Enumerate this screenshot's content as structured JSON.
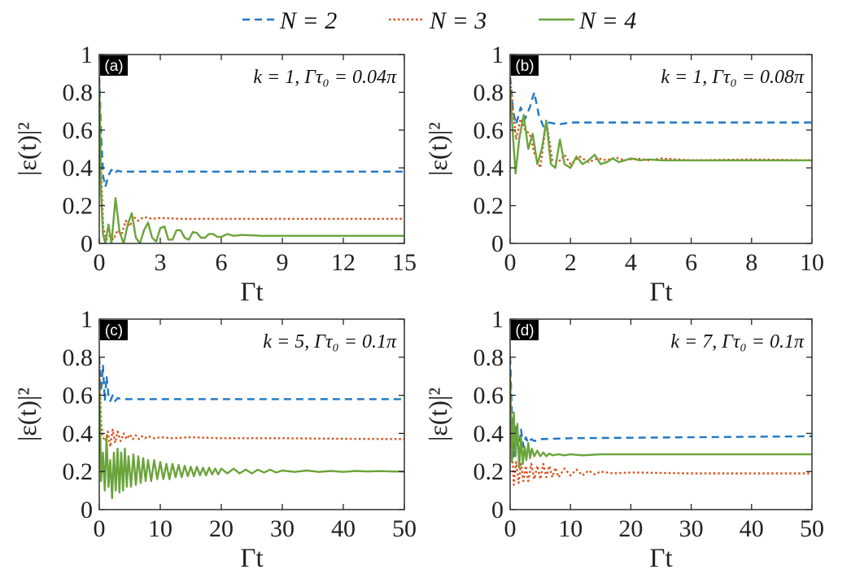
{
  "legend": [
    {
      "label": "N = 2",
      "color": "#1f77c4",
      "dash": "dashed"
    },
    {
      "label": "N = 3",
      "color": "#d9531e",
      "dash": "dotted"
    },
    {
      "label": "N = 4",
      "color": "#6aa43a",
      "dash": "solid"
    }
  ],
  "chart_data": [
    {
      "type": "line",
      "panel_label": "(a)",
      "annotation": "k = 1, Γτ₀ = 0.04π",
      "xlabel": "Γt",
      "ylabel": "|ε(t)|²",
      "xlim": [
        0,
        15
      ],
      "ylim": [
        0,
        1
      ],
      "xticks": [
        0,
        3,
        6,
        9,
        12,
        15
      ],
      "yticks": [
        0,
        0.2,
        0.4,
        0.6,
        0.8,
        1
      ],
      "xtick_labels": [
        "0",
        "3",
        "6",
        "9",
        "12",
        "15"
      ],
      "ytick_labels": [
        "0",
        "0.2",
        "0.4",
        "0.6",
        "0.8",
        "1"
      ],
      "series": [
        {
          "name": "N = 2",
          "x": [
            0,
            0.1,
            0.2,
            0.3,
            0.45,
            0.6,
            0.75,
            0.9,
            1.1,
            1.4,
            2,
            5,
            10,
            15
          ],
          "y": [
            0.88,
            0.55,
            0.35,
            0.3,
            0.36,
            0.39,
            0.37,
            0.385,
            0.38,
            0.38,
            0.38,
            0.38,
            0.38,
            0.38
          ]
        },
        {
          "name": "N = 3",
          "x": [
            0,
            0.1,
            0.2,
            0.35,
            0.5,
            0.7,
            0.9,
            1.1,
            1.3,
            1.5,
            1.7,
            1.9,
            2.2,
            2.6,
            3,
            4,
            8,
            15
          ],
          "y": [
            0.85,
            0.35,
            0.08,
            0.02,
            0.04,
            0.02,
            0.07,
            0.05,
            0.12,
            0.09,
            0.14,
            0.12,
            0.14,
            0.13,
            0.135,
            0.13,
            0.13,
            0.13
          ]
        },
        {
          "name": "N = 4",
          "x": [
            0,
            0.08,
            0.18,
            0.3,
            0.45,
            0.6,
            0.8,
            1.0,
            1.2,
            1.4,
            1.6,
            1.8,
            2.0,
            2.2,
            2.4,
            2.6,
            2.8,
            3.0,
            3.2,
            3.4,
            3.6,
            3.8,
            4.0,
            4.2,
            4.4,
            4.6,
            4.8,
            5.0,
            5.2,
            5.4,
            5.6,
            5.8,
            6.0,
            6.3,
            6.6,
            7.0,
            8,
            10,
            15
          ],
          "y": [
            0.85,
            0.3,
            0.05,
            0.0,
            0.1,
            0.0,
            0.24,
            0.06,
            0.0,
            0.1,
            0.16,
            0.03,
            0.0,
            0.07,
            0.11,
            0.03,
            0.01,
            0.08,
            0.09,
            0.02,
            0.02,
            0.07,
            0.07,
            0.03,
            0.02,
            0.06,
            0.055,
            0.03,
            0.03,
            0.05,
            0.05,
            0.035,
            0.035,
            0.05,
            0.04,
            0.045,
            0.04,
            0.04,
            0.04
          ]
        }
      ]
    },
    {
      "type": "line",
      "panel_label": "(b)",
      "annotation": "k = 1, Γτ₀ = 0.08π",
      "xlabel": "Γt",
      "ylabel": "|ε(t)|²",
      "xlim": [
        0,
        10
      ],
      "ylim": [
        0,
        1
      ],
      "xticks": [
        0,
        2,
        4,
        6,
        8,
        10
      ],
      "yticks": [
        0,
        0.2,
        0.4,
        0.6,
        0.8,
        1
      ],
      "xtick_labels": [
        "0",
        "2",
        "4",
        "6",
        "8",
        "10"
      ],
      "ytick_labels": [
        "0",
        "0.2",
        "0.4",
        "0.6",
        "0.8",
        "1"
      ],
      "series": [
        {
          "name": "N = 2",
          "x": [
            0,
            0.1,
            0.2,
            0.35,
            0.5,
            0.65,
            0.8,
            0.95,
            1.1,
            1.3,
            1.6,
            2,
            4,
            10
          ],
          "y": [
            0.88,
            0.7,
            0.63,
            0.72,
            0.66,
            0.72,
            0.8,
            0.68,
            0.62,
            0.64,
            0.63,
            0.64,
            0.64,
            0.64
          ]
        },
        {
          "name": "N = 3",
          "x": [
            0,
            0.1,
            0.2,
            0.35,
            0.5,
            0.65,
            0.8,
            1.0,
            1.2,
            1.4,
            1.6,
            1.8,
            2.0,
            2.3,
            2.6,
            2.9,
            3.2,
            3.5,
            3.8,
            4.2,
            4.6,
            5,
            6,
            8,
            10
          ],
          "y": [
            0.88,
            0.7,
            0.55,
            0.66,
            0.6,
            0.58,
            0.48,
            0.4,
            0.65,
            0.44,
            0.43,
            0.47,
            0.42,
            0.46,
            0.43,
            0.45,
            0.44,
            0.455,
            0.44,
            0.45,
            0.44,
            0.45,
            0.44,
            0.445,
            0.44
          ]
        },
        {
          "name": "N = 4",
          "x": [
            0,
            0.08,
            0.18,
            0.3,
            0.45,
            0.6,
            0.75,
            0.9,
            1.05,
            1.2,
            1.35,
            1.5,
            1.65,
            1.8,
            2.0,
            2.2,
            2.4,
            2.6,
            2.8,
            3.0,
            3.2,
            3.4,
            3.6,
            3.8,
            4.0,
            4.3,
            4.6,
            5,
            6,
            8,
            10
          ],
          "y": [
            0.82,
            0.6,
            0.37,
            0.55,
            0.68,
            0.5,
            0.58,
            0.42,
            0.5,
            0.65,
            0.42,
            0.4,
            0.55,
            0.42,
            0.4,
            0.46,
            0.42,
            0.44,
            0.47,
            0.42,
            0.43,
            0.45,
            0.43,
            0.44,
            0.45,
            0.44,
            0.445,
            0.44,
            0.44,
            0.44,
            0.44
          ]
        }
      ]
    },
    {
      "type": "line",
      "panel_label": "(c)",
      "annotation": "k = 5, Γτ₀ = 0.1π",
      "xlabel": "Γt",
      "ylabel": "|ε(t)|²",
      "xlim": [
        0,
        50
      ],
      "ylim": [
        0,
        1
      ],
      "xticks": [
        0,
        10,
        20,
        30,
        40,
        50
      ],
      "yticks": [
        0,
        0.2,
        0.4,
        0.6,
        0.8,
        1
      ],
      "xtick_labels": [
        "0",
        "10",
        "20",
        "30",
        "40",
        "50"
      ],
      "ytick_labels": [
        "0",
        "0.2",
        "0.4",
        "0.6",
        "0.8",
        "1"
      ],
      "series": [
        {
          "name": "N = 2",
          "x": [
            0,
            0.3,
            0.6,
            0.9,
            1.2,
            1.5,
            1.8,
            2.2,
            2.6,
            3,
            4,
            10,
            50
          ],
          "y": [
            0.8,
            0.62,
            0.76,
            0.57,
            0.7,
            0.6,
            0.57,
            0.6,
            0.57,
            0.585,
            0.58,
            0.58,
            0.58
          ]
        },
        {
          "name": "N = 3",
          "x": [
            0,
            0.3,
            0.6,
            1,
            1.4,
            1.8,
            2.2,
            2.6,
            3,
            3.5,
            4,
            4.5,
            5,
            5.5,
            6,
            6.5,
            7,
            7.5,
            8,
            9,
            10,
            12,
            15,
            20,
            30,
            40,
            50
          ],
          "y": [
            0.8,
            0.45,
            0.38,
            0.36,
            0.41,
            0.33,
            0.42,
            0.35,
            0.41,
            0.36,
            0.4,
            0.37,
            0.395,
            0.37,
            0.39,
            0.37,
            0.385,
            0.375,
            0.385,
            0.375,
            0.38,
            0.375,
            0.38,
            0.375,
            0.375,
            0.372,
            0.37
          ]
        },
        {
          "name": "N = 4",
          "x": [
            0,
            0.3,
            0.6,
            0.9,
            1.2,
            1.5,
            1.8,
            2.1,
            2.4,
            2.7,
            3.0,
            3.3,
            3.6,
            3.9,
            4.2,
            4.5,
            4.8,
            5.2,
            5.6,
            6.0,
            6.4,
            6.8,
            7.2,
            7.6,
            8.0,
            8.5,
            9.0,
            9.5,
            10,
            10.5,
            11,
            11.5,
            12,
            12.5,
            13,
            13.5,
            14,
            14.5,
            15,
            15.5,
            16,
            16.5,
            17,
            17.5,
            18,
            18.5,
            19,
            19.5,
            20,
            21,
            22,
            23,
            24,
            25,
            26,
            27,
            28,
            29,
            30,
            32,
            34,
            36,
            38,
            40,
            42,
            44,
            46,
            48,
            50
          ],
          "y": [
            0.7,
            0.15,
            0.3,
            0.1,
            0.38,
            0.12,
            0.26,
            0.06,
            0.3,
            0.1,
            0.32,
            0.09,
            0.3,
            0.1,
            0.32,
            0.12,
            0.28,
            0.12,
            0.29,
            0.13,
            0.28,
            0.14,
            0.27,
            0.15,
            0.26,
            0.15,
            0.26,
            0.16,
            0.25,
            0.16,
            0.24,
            0.16,
            0.24,
            0.17,
            0.235,
            0.17,
            0.23,
            0.175,
            0.225,
            0.175,
            0.225,
            0.18,
            0.22,
            0.18,
            0.22,
            0.185,
            0.215,
            0.185,
            0.215,
            0.19,
            0.215,
            0.19,
            0.21,
            0.19,
            0.21,
            0.195,
            0.21,
            0.195,
            0.205,
            0.198,
            0.205,
            0.198,
            0.203,
            0.198,
            0.203,
            0.2,
            0.202,
            0.2,
            0.2
          ]
        }
      ]
    },
    {
      "type": "line",
      "panel_label": "(d)",
      "annotation": "k = 7, Γτ₀ = 0.1π",
      "xlabel": "Γt",
      "ylabel": "|ε(t)|²",
      "xlim": [
        0,
        50
      ],
      "ylim": [
        0,
        1
      ],
      "xticks": [
        0,
        10,
        20,
        30,
        40,
        50
      ],
      "yticks": [
        0,
        0.2,
        0.4,
        0.6,
        0.8,
        1
      ],
      "xtick_labels": [
        "0",
        "10",
        "20",
        "30",
        "40",
        "50"
      ],
      "ytick_labels": [
        "0",
        "0.2",
        "0.4",
        "0.6",
        "0.8",
        "1"
      ],
      "series": [
        {
          "name": "N = 2",
          "x": [
            0,
            0.3,
            0.6,
            1,
            1.4,
            1.8,
            2.2,
            2.6,
            3,
            3.5,
            4,
            5,
            10,
            30,
            50
          ],
          "y": [
            0.8,
            0.5,
            0.28,
            0.45,
            0.3,
            0.42,
            0.33,
            0.38,
            0.35,
            0.37,
            0.36,
            0.37,
            0.375,
            0.38,
            0.385
          ]
        },
        {
          "name": "N = 3",
          "x": [
            0,
            0.3,
            0.6,
            1,
            1.4,
            1.8,
            2.2,
            2.6,
            3,
            3.5,
            4,
            4.5,
            5,
            5.5,
            6,
            6.5,
            7,
            7.5,
            8,
            9,
            10,
            11,
            12,
            13,
            14,
            15,
            17,
            20,
            30,
            40,
            50
          ],
          "y": [
            0.7,
            0.35,
            0.13,
            0.25,
            0.14,
            0.24,
            0.15,
            0.23,
            0.15,
            0.24,
            0.16,
            0.23,
            0.16,
            0.24,
            0.17,
            0.23,
            0.17,
            0.22,
            0.17,
            0.215,
            0.18,
            0.21,
            0.18,
            0.205,
            0.185,
            0.2,
            0.19,
            0.195,
            0.19,
            0.19,
            0.19
          ]
        },
        {
          "name": "N = 4",
          "x": [
            0,
            0.3,
            0.6,
            0.9,
            1.2,
            1.5,
            1.8,
            2.1,
            2.4,
            2.7,
            3.0,
            3.3,
            3.6,
            4,
            4.5,
            5,
            5.5,
            6,
            6.5,
            7,
            8,
            9,
            10,
            12,
            15,
            20,
            30,
            40,
            50
          ],
          "y": [
            0.7,
            0.25,
            0.51,
            0.28,
            0.45,
            0.22,
            0.38,
            0.24,
            0.33,
            0.26,
            0.35,
            0.27,
            0.32,
            0.28,
            0.31,
            0.28,
            0.3,
            0.28,
            0.295,
            0.285,
            0.29,
            0.285,
            0.29,
            0.285,
            0.29,
            0.29,
            0.29,
            0.29,
            0.29
          ]
        }
      ]
    }
  ]
}
